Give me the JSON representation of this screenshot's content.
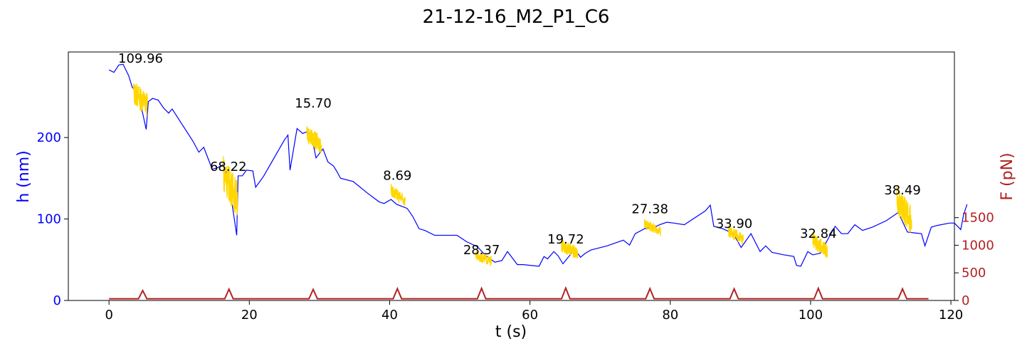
{
  "chart_data": {
    "type": "line",
    "title": "21-12-16_M2_P1_C6",
    "xlabel": "t (s)",
    "ylabel_left": "h (nm)",
    "ylabel_right": "F (pN)",
    "xlim": [
      -5.8,
      120.5
    ],
    "ylim_left": [
      0,
      305
    ],
    "ylim_right": [
      0,
      4500
    ],
    "x_ticks": [
      0,
      20,
      40,
      60,
      80,
      100,
      120
    ],
    "y_ticks_left": [
      0,
      100,
      200
    ],
    "y_ticks_right": [
      0,
      500,
      1000,
      1500
    ],
    "grid": false,
    "colors": {
      "height": "#0000ff",
      "segments": "#ffd700",
      "force": "#b22222",
      "left_axis": "#0000ff",
      "right_axis": "#b22222",
      "text": "#000000"
    },
    "series": [
      {
        "role": "height",
        "points": [
          [
            0,
            283
          ],
          [
            0.7,
            280
          ],
          [
            1.4,
            289
          ],
          [
            2,
            290
          ],
          [
            2.8,
            276
          ],
          [
            3.3,
            262
          ],
          [
            4.2,
            253
          ],
          [
            5.3,
            210
          ],
          [
            5.6,
            244
          ],
          [
            6.2,
            248
          ],
          [
            7,
            246
          ],
          [
            7.8,
            236
          ],
          [
            8.5,
            230
          ],
          [
            9,
            235
          ],
          [
            10.5,
            215
          ],
          [
            12,
            195
          ],
          [
            12.8,
            182
          ],
          [
            13.5,
            188
          ],
          [
            14.4,
            168
          ],
          [
            14.7,
            161
          ],
          [
            15.5,
            163
          ],
          [
            16.3,
            167
          ],
          [
            17,
            150
          ],
          [
            18.2,
            80
          ],
          [
            18.4,
            153
          ],
          [
            19,
            153
          ],
          [
            19.6,
            160
          ],
          [
            20.5,
            159
          ],
          [
            20.9,
            139
          ],
          [
            22,
            152
          ],
          [
            25,
            197
          ],
          [
            25.5,
            203
          ],
          [
            25.8,
            160
          ],
          [
            26.8,
            211
          ],
          [
            27.6,
            205
          ],
          [
            28.2,
            207
          ],
          [
            28.8,
            205
          ],
          [
            29.5,
            175
          ],
          [
            30.5,
            186
          ],
          [
            31.2,
            170
          ],
          [
            32,
            165
          ],
          [
            32.5,
            158
          ],
          [
            33,
            150
          ],
          [
            34.8,
            146
          ],
          [
            36.8,
            132
          ],
          [
            38.5,
            121
          ],
          [
            39.2,
            119
          ],
          [
            40.2,
            124
          ],
          [
            41,
            118
          ],
          [
            42.5,
            113
          ],
          [
            43.3,
            103
          ],
          [
            44.2,
            88
          ],
          [
            45,
            86
          ],
          [
            46.4,
            80
          ],
          [
            48,
            80
          ],
          [
            49.6,
            80
          ],
          [
            51,
            72
          ],
          [
            52.5,
            66
          ],
          [
            53.7,
            55
          ],
          [
            55,
            47
          ],
          [
            56,
            49
          ],
          [
            56.8,
            60
          ],
          [
            57.5,
            52
          ],
          [
            58.2,
            44
          ],
          [
            59,
            44
          ],
          [
            61.3,
            42
          ],
          [
            62,
            54
          ],
          [
            62.5,
            51
          ],
          [
            63.4,
            60
          ],
          [
            64,
            55
          ],
          [
            64.7,
            45
          ],
          [
            66.4,
            63
          ],
          [
            67.2,
            53
          ],
          [
            67.9,
            58
          ],
          [
            68.7,
            62
          ],
          [
            71,
            67
          ],
          [
            73.3,
            74
          ],
          [
            74.2,
            68
          ],
          [
            75,
            82
          ],
          [
            76.3,
            88
          ],
          [
            78,
            91
          ],
          [
            78.5,
            93
          ],
          [
            79.5,
            96
          ],
          [
            80.5,
            95
          ],
          [
            82,
            93
          ],
          [
            85,
            110
          ],
          [
            85.7,
            117
          ],
          [
            86.2,
            91
          ],
          [
            87.5,
            88
          ],
          [
            89,
            82
          ],
          [
            90.1,
            65
          ],
          [
            91.5,
            82
          ],
          [
            92.8,
            60
          ],
          [
            93.6,
            67
          ],
          [
            94.5,
            59
          ],
          [
            96.2,
            56
          ],
          [
            97.6,
            54
          ],
          [
            98,
            43
          ],
          [
            98.6,
            42
          ],
          [
            99.6,
            60
          ],
          [
            100.3,
            56
          ],
          [
            101.4,
            58
          ],
          [
            102,
            68
          ],
          [
            103.5,
            91
          ],
          [
            104.4,
            82
          ],
          [
            105.3,
            82
          ],
          [
            106.3,
            93
          ],
          [
            107.4,
            86
          ],
          [
            108.8,
            90
          ],
          [
            110.8,
            98
          ],
          [
            112.5,
            108
          ],
          [
            113.8,
            84
          ],
          [
            114.7,
            83
          ],
          [
            115.8,
            82
          ],
          [
            116.3,
            67
          ],
          [
            117.2,
            90
          ],
          [
            118,
            92
          ],
          [
            119.8,
            95
          ],
          [
            120.5,
            95
          ],
          [
            121.4,
            87
          ],
          [
            121.8,
            105
          ],
          [
            122.3,
            118
          ]
        ]
      },
      {
        "role": "segments",
        "segments": [
          {
            "start": 3.5,
            "end": 5.5,
            "base": 240,
            "amp": 30,
            "peak": 265
          },
          {
            "start": 16.3,
            "end": 18.3,
            "base": 125,
            "amp": 45,
            "peak": 177
          },
          {
            "start": 28.2,
            "end": 30.3,
            "base": 190,
            "amp": 22,
            "peak": 214
          },
          {
            "start": 40.2,
            "end": 42.2,
            "base": 122,
            "amp": 15,
            "peak": 143
          },
          {
            "start": 52.3,
            "end": 54.5,
            "base": 48,
            "amp": 12,
            "peak": 60
          },
          {
            "start": 64.5,
            "end": 66.8,
            "base": 58,
            "amp": 16,
            "peak": 73
          },
          {
            "start": 76.3,
            "end": 78.6,
            "base": 85,
            "amp": 12,
            "peak": 100
          },
          {
            "start": 88.3,
            "end": 90.4,
            "base": 75,
            "amp": 15,
            "peak": 92
          },
          {
            "start": 100.3,
            "end": 102.4,
            "base": 60,
            "amp": 20,
            "peak": 84
          },
          {
            "start": 112.3,
            "end": 114.4,
            "base": 98,
            "amp": 35,
            "peak": 140
          }
        ]
      },
      {
        "role": "force",
        "baseline": 30,
        "pulses": [
          {
            "center": 4.8,
            "height": 150
          },
          {
            "center": 17.1,
            "height": 175
          },
          {
            "center": 29.1,
            "height": 170
          },
          {
            "center": 41.1,
            "height": 185
          },
          {
            "center": 53.1,
            "height": 190
          },
          {
            "center": 65.1,
            "height": 195
          },
          {
            "center": 77.1,
            "height": 185
          },
          {
            "center": 89.1,
            "height": 180
          },
          {
            "center": 101.1,
            "height": 190
          },
          {
            "center": 113.1,
            "height": 180
          }
        ],
        "end": 116.8
      }
    ],
    "annotations": [
      {
        "text": "109.96",
        "x": 4.5,
        "y": 292
      },
      {
        "text": "68.22",
        "x": 17.0,
        "y": 159
      },
      {
        "text": "15.70",
        "x": 29.1,
        "y": 237
      },
      {
        "text": "8.69",
        "x": 41.1,
        "y": 148
      },
      {
        "text": "28.37",
        "x": 53.1,
        "y": 57
      },
      {
        "text": "19.72",
        "x": 65.1,
        "y": 70
      },
      {
        "text": "27.38",
        "x": 77.1,
        "y": 107
      },
      {
        "text": "33.90",
        "x": 89.1,
        "y": 89
      },
      {
        "text": "32.84",
        "x": 101.1,
        "y": 77
      },
      {
        "text": "38.49",
        "x": 113.1,
        "y": 130
      }
    ]
  }
}
